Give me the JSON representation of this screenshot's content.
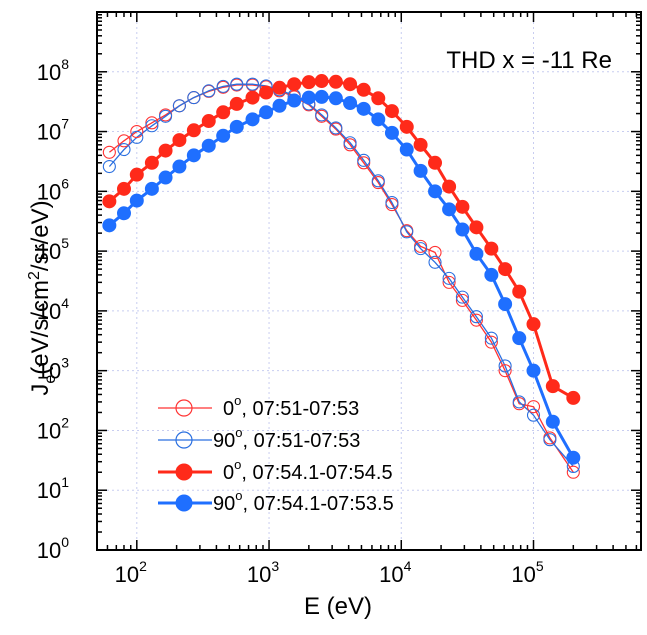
{
  "chart_data": {
    "type": "line",
    "title": "",
    "annotation": "THD  x = -11 Re",
    "xlabel": "E (eV)",
    "ylabel": {
      "main": "J",
      "sub": "e",
      "rest1": "(eV/s/cm",
      "sup": "2",
      "rest2": "/sr/eV)"
    },
    "x_scale": "log",
    "y_scale": "log",
    "xlim": [
      50,
      650000
    ],
    "ylim": [
      1,
      1000000000
    ],
    "grid": true,
    "legend_position": "lower-left",
    "x_ticks": [
      {
        "base": "10",
        "exp": "2"
      },
      {
        "base": "10",
        "exp": "3"
      },
      {
        "base": "10",
        "exp": "4"
      },
      {
        "base": "10",
        "exp": "5"
      }
    ],
    "y_ticks": [
      {
        "base": "10",
        "exp": "0"
      },
      {
        "base": "10",
        "exp": "1"
      },
      {
        "base": "10",
        "exp": "2"
      },
      {
        "base": "10",
        "exp": "3"
      },
      {
        "base": "10",
        "exp": "4"
      },
      {
        "base": "10",
        "exp": "5"
      },
      {
        "base": "10",
        "exp": "6"
      },
      {
        "base": "10",
        "exp": "7"
      },
      {
        "base": "10",
        "exp": "8"
      }
    ],
    "series": [
      {
        "name": "0°, 07:51-07:53",
        "legend": {
          "pre": "0",
          "sup": "o",
          "post": ", 07:51-07:53"
        },
        "color": "#ff3333",
        "filled": false,
        "x": [
          62,
          80,
          100,
          130,
          165,
          210,
          270,
          350,
          450,
          570,
          750,
          950,
          1200,
          1550,
          2000,
          2500,
          3200,
          4100,
          5200,
          6700,
          8500,
          11000,
          14000,
          18000,
          23000,
          29000,
          37000,
          48000,
          61000,
          78000,
          100000,
          133000,
          200000
        ],
        "y": [
          4500000,
          7000000,
          10000000,
          14000000,
          19000000,
          27000000,
          37000000,
          47000000,
          55000000,
          60000000,
          60000000,
          56000000,
          48000000,
          38000000,
          28000000,
          18000000,
          11000000,
          6000000,
          3000000,
          1400000,
          600000,
          220000,
          120000,
          95000,
          30000,
          15000,
          7000,
          3000,
          1000,
          280,
          250,
          75,
          20
        ]
      },
      {
        "name": "90°, 07:51-07:53",
        "legend": {
          "pre": "90",
          "sup": "o",
          "post": ", 07:51-07:53"
        },
        "color": "#2a6fe0",
        "filled": false,
        "x": [
          62,
          80,
          100,
          130,
          165,
          210,
          270,
          350,
          450,
          570,
          750,
          950,
          1200,
          1550,
          2000,
          2500,
          3200,
          4100,
          5200,
          6700,
          8500,
          11000,
          14000,
          18000,
          23000,
          29000,
          37000,
          48000,
          61000,
          78000,
          100000,
          133000,
          200000
        ],
        "y": [
          2600000,
          5000000,
          8000000,
          12500000,
          18000000,
          27000000,
          37000000,
          48000000,
          57000000,
          62000000,
          62000000,
          58000000,
          50000000,
          40000000,
          29000000,
          19000000,
          11500000,
          6500000,
          3300000,
          1500000,
          650000,
          210000,
          110000,
          65000,
          35000,
          17000,
          8000,
          3500,
          1200,
          300,
          180,
          70,
          25
        ]
      },
      {
        "name": "0°, 07:54.1-07:54.5",
        "legend": {
          "pre": "0",
          "sup": "o",
          "post": ", 07:54.1-07:54.5"
        },
        "color": "#ff2a1a",
        "filled": true,
        "x": [
          62,
          80,
          100,
          130,
          165,
          210,
          270,
          350,
          450,
          570,
          750,
          950,
          1200,
          1550,
          2000,
          2500,
          3200,
          4100,
          5200,
          6700,
          8500,
          11000,
          14000,
          18000,
          23000,
          29000,
          37000,
          48000,
          61000,
          78000,
          100000,
          140000,
          200000
        ],
        "y": [
          680000,
          1100000,
          1900000,
          3000000,
          4800000,
          7200000,
          10500000,
          15000000,
          21000000,
          29000000,
          37000000,
          45000000,
          54000000,
          62000000,
          67000000,
          70000000,
          68000000,
          62000000,
          50000000,
          36000000,
          22000000,
          12000000,
          6000000,
          3000000,
          1200000,
          550000,
          250000,
          110000,
          50000,
          21000,
          6000,
          550,
          350
        ]
      },
      {
        "name": "90°, 07:54.1-07:53.5",
        "legend": {
          "pre": "90",
          "sup": "o",
          "post": ", 07:54.1-07:53.5"
        },
        "color": "#1f6fff",
        "filled": true,
        "x": [
          62,
          80,
          100,
          130,
          165,
          210,
          270,
          350,
          450,
          570,
          750,
          950,
          1200,
          1550,
          2000,
          2500,
          3200,
          4100,
          5200,
          6700,
          8500,
          11000,
          14000,
          18000,
          23000,
          29000,
          37000,
          48000,
          61000,
          78000,
          100000,
          140000,
          200000
        ],
        "y": [
          270000,
          430000,
          700000,
          1100000,
          1700000,
          2600000,
          4000000,
          5800000,
          8500000,
          12000000,
          16000000,
          21000000,
          27000000,
          33000000,
          37000000,
          38000000,
          36000000,
          30000000,
          24000000,
          16000000,
          9500000,
          5000000,
          2200000,
          1000000,
          500000,
          230000,
          90000,
          40000,
          13000,
          3500,
          1000,
          140,
          35
        ]
      }
    ]
  }
}
